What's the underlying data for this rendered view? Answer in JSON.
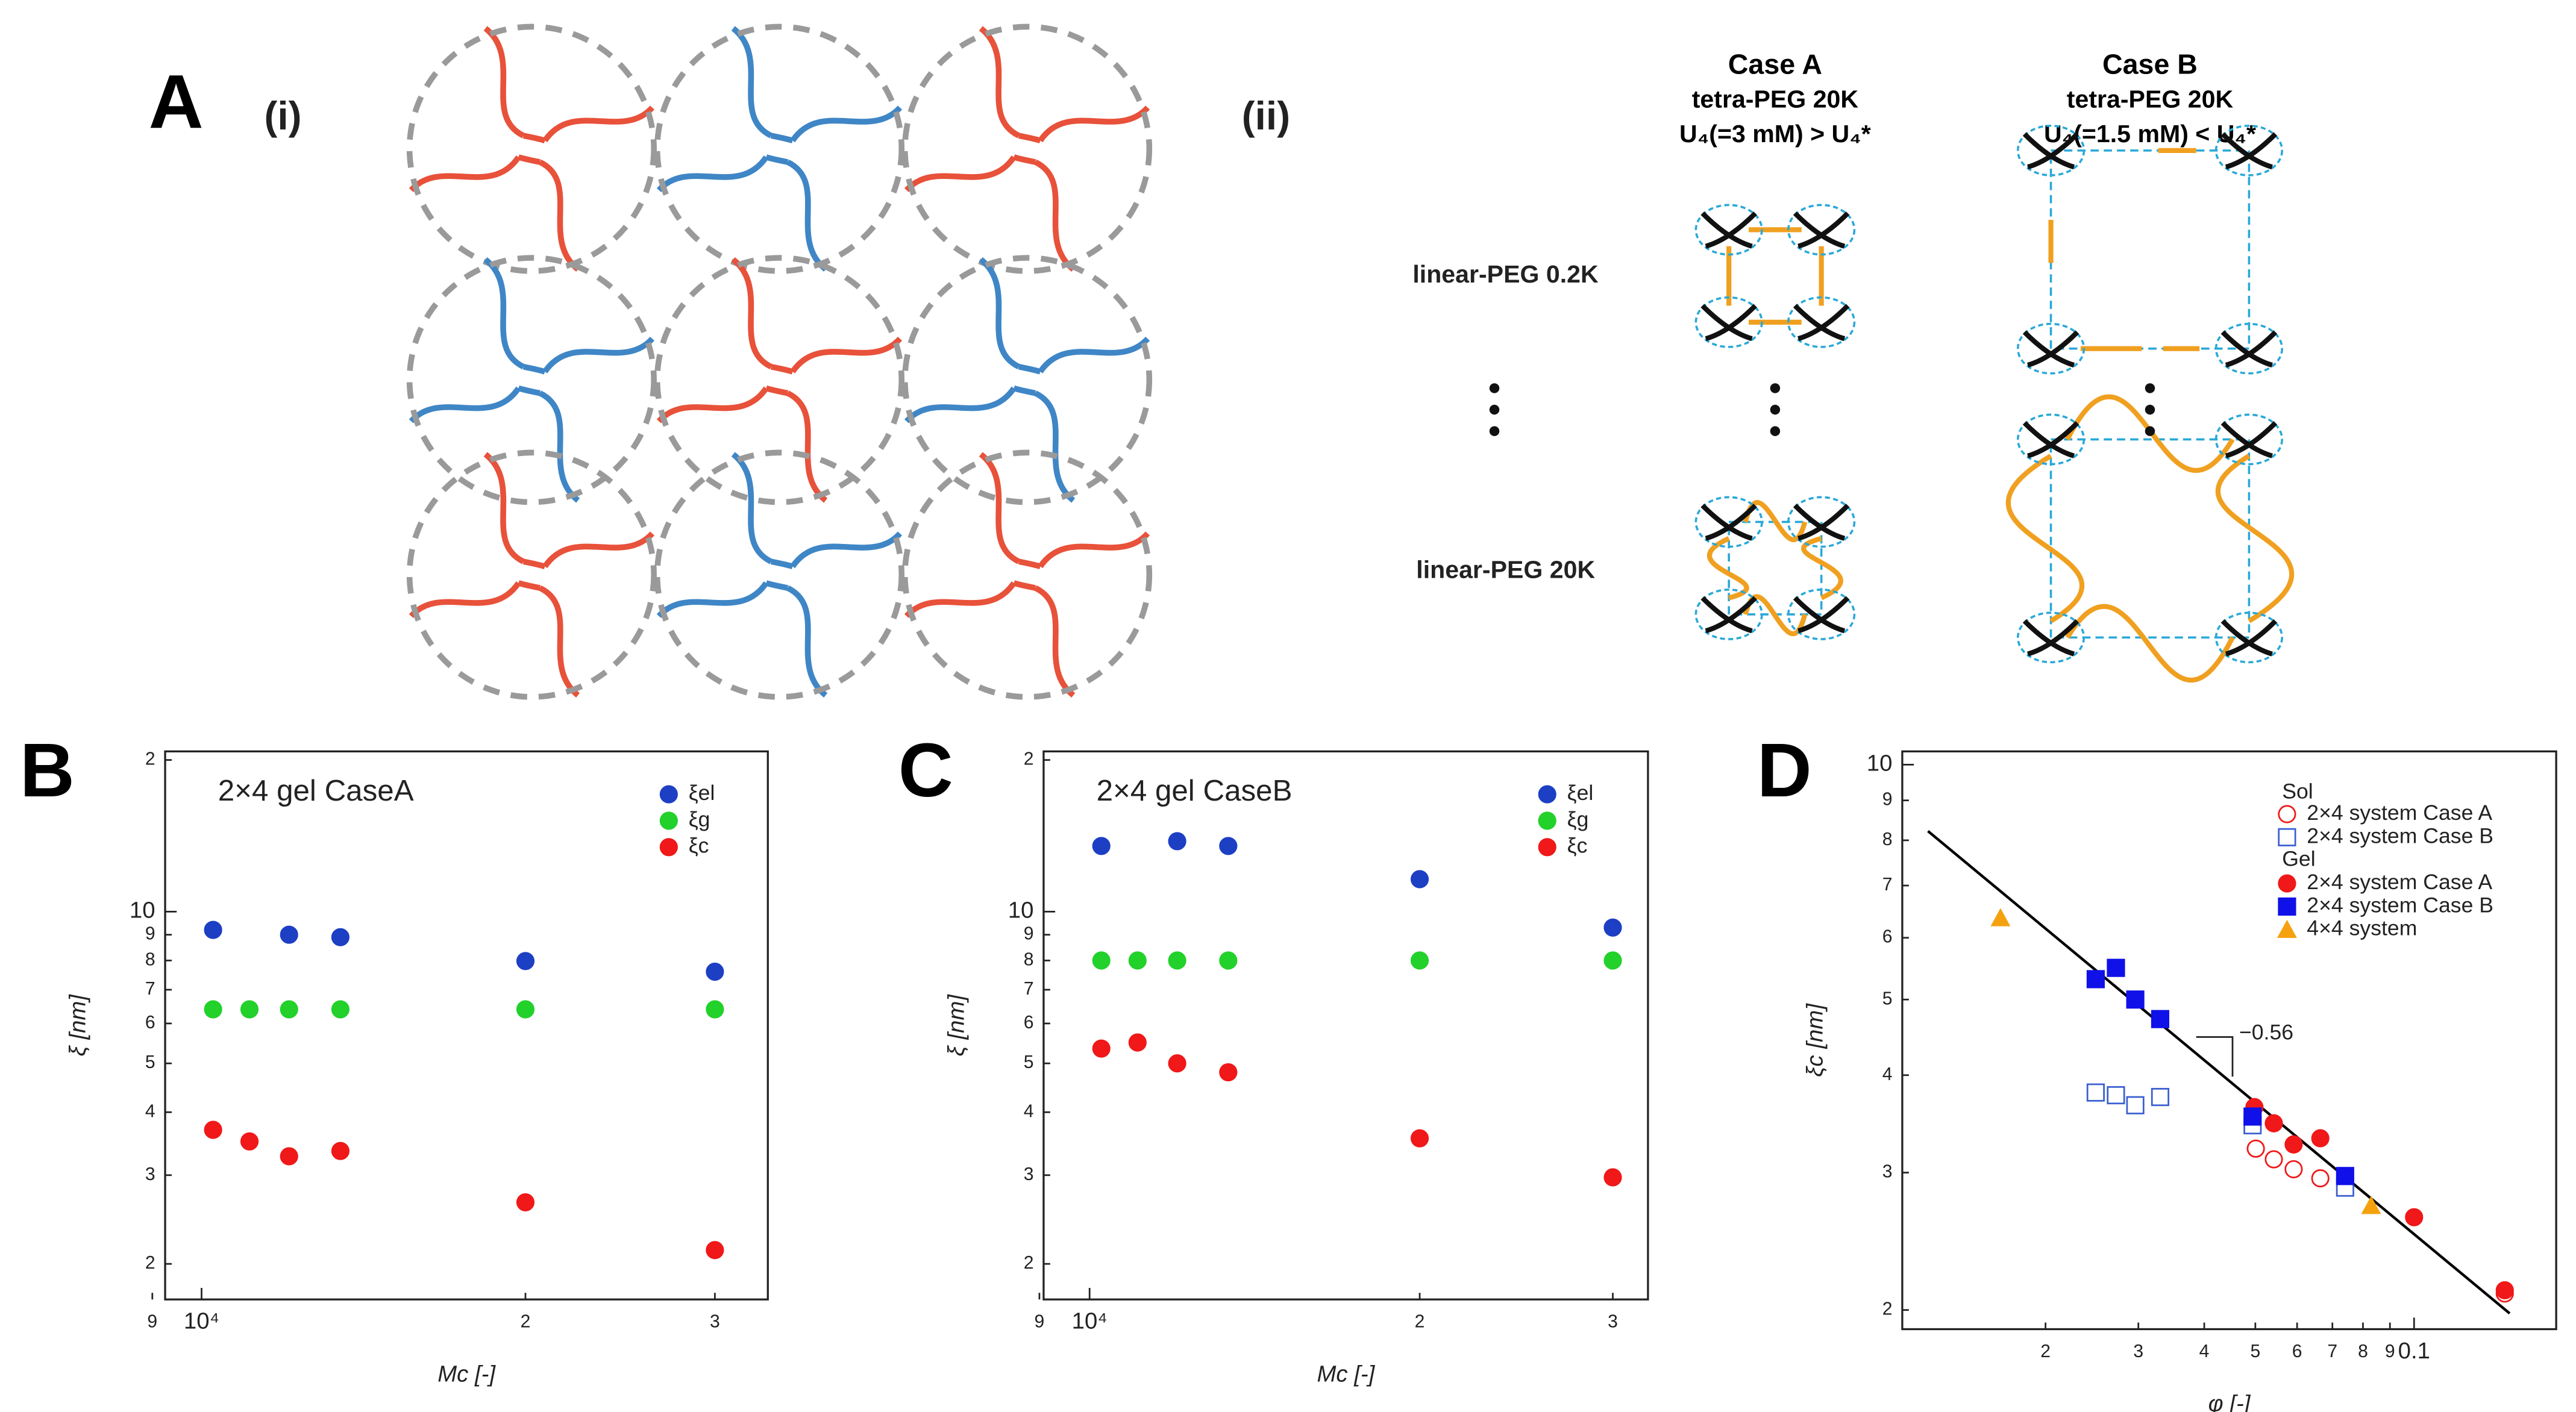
{
  "panel_a": {
    "label": "A",
    "part_i": "(i)",
    "part_ii": "(ii)",
    "case_a": {
      "title": "Case A",
      "polymer": "tetra-PEG 20K",
      "condition": "U₄(=3 mM) > U₄*"
    },
    "case_b": {
      "title": "Case B",
      "polymer": "tetra-PEG 20K",
      "condition": "U₄(=1.5 mM) < U₄*"
    },
    "rows": [
      "linear-PEG 0.2K",
      "linear-PEG 20K"
    ]
  },
  "chart_data": [
    {
      "type": "scatter",
      "panel_label": "B",
      "title": "2×4 gel CaseA",
      "x_label": "Mc [-]",
      "y_label": "ξ [nm]",
      "log_x": true,
      "log_y": true,
      "legend_position": "upper right",
      "xlim": [
        9250,
        33600
      ],
      "ylim": [
        1.7,
        20.8
      ],
      "xticks": [
        {
          "value": 9000,
          "label": "9"
        },
        {
          "value": 10000,
          "label": "10⁴"
        },
        {
          "value": 20000,
          "label": "2"
        },
        {
          "value": 30000,
          "label": "3"
        }
      ],
      "yticks": [
        2,
        3,
        4,
        5,
        6,
        7,
        8,
        9,
        10,
        {
          "value": 20,
          "label": "2"
        }
      ],
      "series": [
        {
          "name": "ξel",
          "color": "#1d3fc4",
          "marker": "circle",
          "x": [
            10250,
            12060,
            13460,
            20000,
            30000
          ],
          "values": [
            9.2,
            9.0,
            8.9,
            7.98,
            7.6
          ]
        },
        {
          "name": "ξg",
          "color": "#22d12a",
          "marker": "circle",
          "x": [
            10250,
            11080,
            12060,
            13460,
            20000,
            30000
          ],
          "values": [
            6.4,
            6.4,
            6.4,
            6.4,
            6.4,
            6.4
          ]
        },
        {
          "name": "ξc",
          "color": "#f01818",
          "marker": "circle",
          "x": [
            10250,
            11080,
            12060,
            13460,
            20000,
            30000
          ],
          "values": [
            3.69,
            3.5,
            3.27,
            3.35,
            2.65,
            2.13
          ]
        }
      ]
    },
    {
      "type": "scatter",
      "panel_label": "C",
      "title": "2×4 gel CaseB",
      "x_label": "Mc [-]",
      "y_label": "ξ [nm]",
      "log_x": true,
      "log_y": true,
      "legend_position": "upper right",
      "xlim": [
        9080,
        32300
      ],
      "ylim": [
        1.7,
        20.8
      ],
      "xticks": [
        {
          "value": 9000,
          "label": "9"
        },
        {
          "value": 10000,
          "label": "10⁴"
        },
        {
          "value": 20000,
          "label": "2"
        },
        {
          "value": 30000,
          "label": "3"
        }
      ],
      "yticks": [
        2,
        3,
        4,
        5,
        6,
        7,
        8,
        9,
        10,
        {
          "value": 20,
          "label": "2"
        }
      ],
      "series": [
        {
          "name": "ξel",
          "color": "#1d3fc4",
          "marker": "circle",
          "x": [
            10250,
            12020,
            13380,
            20000,
            30000
          ],
          "values": [
            13.5,
            13.8,
            13.5,
            11.6,
            9.3
          ]
        },
        {
          "name": "ξg",
          "color": "#22d12a",
          "marker": "circle",
          "x": [
            10250,
            11060,
            12020,
            13380,
            20000,
            30000
          ],
          "values": [
            8.0,
            8.0,
            8.0,
            8.0,
            8.0,
            8.0
          ]
        },
        {
          "name": "ξc",
          "color": "#f01818",
          "marker": "circle",
          "x": [
            10250,
            11060,
            12020,
            13380,
            20000,
            30000
          ],
          "values": [
            5.35,
            5.5,
            5.0,
            4.8,
            3.55,
            2.97
          ]
        }
      ]
    },
    {
      "type": "scatter",
      "panel_label": "D",
      "x_label": "φ [-]",
      "y_label": "ξc [nm]",
      "log_x": true,
      "log_y": true,
      "legend_position": "upper right",
      "legend_headings": [
        "Sol",
        "Gel"
      ],
      "xlim": [
        0.0107,
        0.186
      ],
      "ylim": [
        1.89,
        10.4
      ],
      "xticks": [
        {
          "value": 0.02,
          "label": "2"
        },
        {
          "value": 0.03,
          "label": "3"
        },
        {
          "value": 0.04,
          "label": "4"
        },
        {
          "value": 0.05,
          "label": "5"
        },
        {
          "value": 0.06,
          "label": "6"
        },
        {
          "value": 0.07,
          "label": "7"
        },
        {
          "value": 0.08,
          "label": "8"
        },
        {
          "value": 0.09,
          "label": "9"
        },
        0.1
      ],
      "yticks": [
        2,
        3,
        4,
        5,
        6,
        7,
        8,
        9,
        10
      ],
      "series": [
        {
          "name": "2×4 system Case A",
          "color": "#f01818",
          "marker": "circle-open",
          "x": [
            0.0501,
            0.0542,
            0.0591,
            0.0664,
            0.1486
          ],
          "values": [
            3.22,
            3.12,
            3.03,
            2.95,
            2.1
          ]
        },
        {
          "name": "2×4 system Case B",
          "color": "#3a5fd0",
          "marker": "square-open",
          "x": [
            0.0249,
            0.0272,
            0.0296,
            0.033,
            0.0494,
            0.074
          ],
          "values": [
            3.8,
            3.77,
            3.66,
            3.75,
            3.45,
            2.87
          ]
        },
        {
          "name": "2×4 system Case A",
          "color": "#f01818",
          "marker": "circle",
          "x": [
            0.0498,
            0.0542,
            0.0591,
            0.0664,
            0.1,
            0.1486
          ],
          "values": [
            3.64,
            3.47,
            3.26,
            3.32,
            2.63,
            2.12
          ]
        },
        {
          "name": "2×4 system Case B",
          "color": "#1010e8",
          "marker": "square",
          "x": [
            0.0249,
            0.0272,
            0.0296,
            0.033,
            0.0494,
            0.074
          ],
          "values": [
            5.31,
            5.49,
            5.0,
            4.72,
            3.54,
            2.97
          ]
        },
        {
          "name": "4×4 system",
          "color": "#f5a10f",
          "marker": "triangle",
          "x": [
            0.01643,
            0.0829
          ],
          "values": [
            6.36,
            2.72
          ]
        }
      ],
      "fit_line": {
        "x": [
          0.01197,
          0.1518
        ],
        "values": [
          8.22,
          1.98
        ],
        "color": "#000000"
      },
      "annotation": "−0.56"
    }
  ]
}
